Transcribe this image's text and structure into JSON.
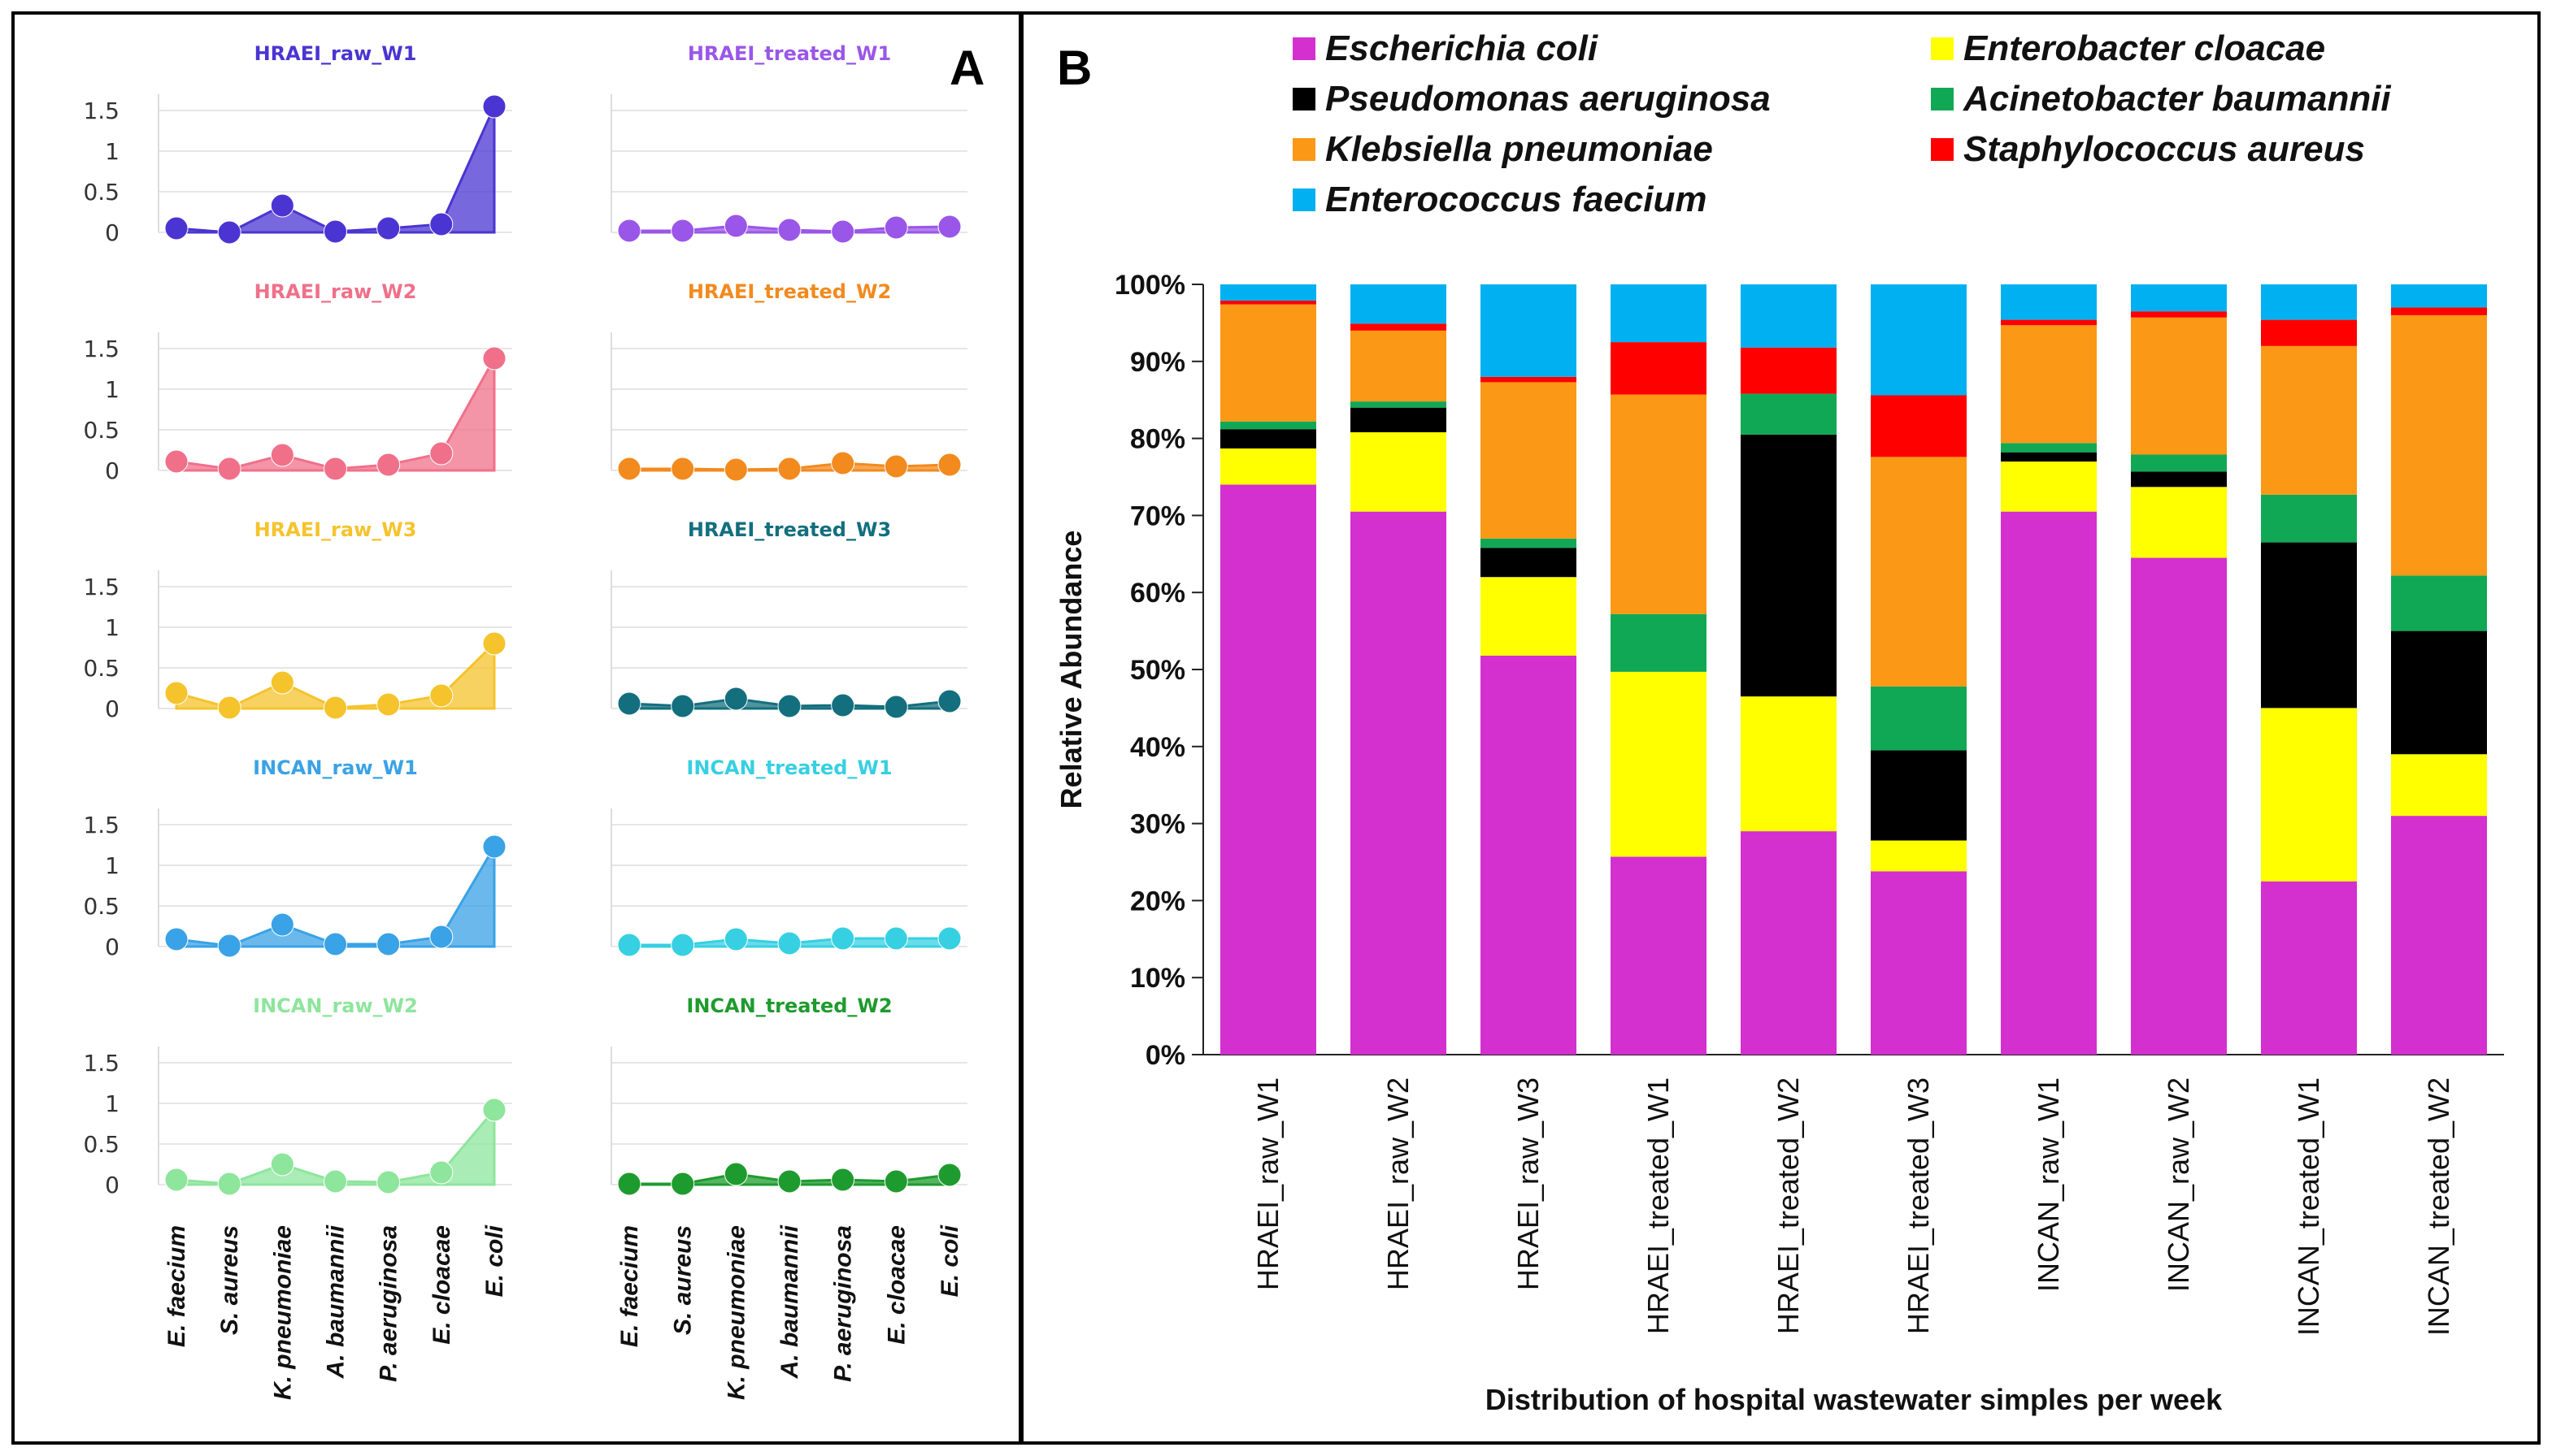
{
  "panel_a": {
    "letter": "A"
  },
  "panel_b": {
    "letter": "B"
  },
  "chart_data": [
    {
      "type": "area",
      "panel": "A",
      "categories": [
        "E. faecium",
        "S. aureus",
        "K. pneumoniae",
        "A. baumannii",
        "P. aeruginosa",
        "E. cloacae",
        "E. coli"
      ],
      "yticks": [
        "0",
        "0.5",
        "1",
        "1.5"
      ],
      "ylim": [
        0,
        1.6
      ],
      "subplots": [
        {
          "title": "HRAEI_raw_W1",
          "color": "#4a35d2",
          "values": [
            0.05,
            0.0,
            0.33,
            0.01,
            0.05,
            0.1,
            1.55
          ]
        },
        {
          "title": "HRAEI_treated_W1",
          "color": "#9a56e8",
          "values": [
            0.02,
            0.02,
            0.08,
            0.03,
            0.01,
            0.06,
            0.07
          ]
        },
        {
          "title": "HRAEI_raw_W2",
          "color": "#f0708a",
          "values": [
            0.11,
            0.02,
            0.19,
            0.02,
            0.07,
            0.21,
            1.38
          ]
        },
        {
          "title": "HRAEI_treated_W2",
          "color": "#f28a1e",
          "values": [
            0.02,
            0.02,
            0.01,
            0.02,
            0.09,
            0.05,
            0.07
          ]
        },
        {
          "title": "HRAEI_raw_W3",
          "color": "#f5c32c",
          "values": [
            0.19,
            0.01,
            0.32,
            0.01,
            0.05,
            0.16,
            0.8
          ]
        },
        {
          "title": "HRAEI_treated_W3",
          "color": "#136f7e",
          "values": [
            0.06,
            0.03,
            0.12,
            0.03,
            0.04,
            0.02,
            0.09
          ]
        },
        {
          "title": "INCAN_raw_W1",
          "color": "#3aa2e6",
          "values": [
            0.09,
            0.01,
            0.27,
            0.03,
            0.03,
            0.12,
            1.23
          ]
        },
        {
          "title": "INCAN_treated_W1",
          "color": "#36d0e2",
          "values": [
            0.02,
            0.02,
            0.09,
            0.04,
            0.1,
            0.1,
            0.1
          ]
        },
        {
          "title": "INCAN_raw_W2",
          "color": "#8ee59c",
          "values": [
            0.06,
            0.01,
            0.25,
            0.04,
            0.03,
            0.15,
            0.92
          ]
        },
        {
          "title": "INCAN_treated_W2",
          "color": "#1e9b2e",
          "values": [
            0.01,
            0.01,
            0.13,
            0.04,
            0.06,
            0.04,
            0.12
          ]
        }
      ]
    },
    {
      "type": "bar",
      "stacked": true,
      "panel": "B",
      "xlabel": "Distribution of hospital wastewater simples per week",
      "ylabel": "Relative Abundance",
      "yticks": [
        "0%",
        "10%",
        "20%",
        "30%",
        "40%",
        "50%",
        "60%",
        "70%",
        "80%",
        "90%",
        "100%"
      ],
      "ylim": [
        0,
        100
      ],
      "categories": [
        "HRAEI_raw_W1",
        "HRAEI_raw_W2",
        "HRAEI_raw_W3",
        "HRAEI_treated_W1",
        "HRAEI_treated_W2",
        "HRAEI_treated_W3",
        "INCAN_raw_W1",
        "INCAN_raw_W2",
        "INCAN_treated_W1",
        "INCAN_treated_W2"
      ],
      "series": [
        {
          "name": "Escherichia coli",
          "color": "#d42fcf",
          "values": [
            74,
            70.5,
            51.8,
            25.7,
            29,
            23.8,
            70.5,
            64.5,
            22.5,
            31
          ]
        },
        {
          "name": "Enterobacter cloacae",
          "color": "#ffff00",
          "values": [
            4.7,
            10.3,
            10.2,
            24,
            17.5,
            4,
            6.5,
            9.2,
            22.5,
            8
          ]
        },
        {
          "name": "Pseudomonas aeruginosa",
          "color": "#000000",
          "values": [
            2.5,
            3.2,
            3.8,
            0,
            34,
            11.7,
            1.2,
            2,
            21.5,
            16
          ]
        },
        {
          "name": "Acinetobacter baumannii",
          "color": "#11a855",
          "values": [
            1,
            0.8,
            1.2,
            7.5,
            5.3,
            8.3,
            1.2,
            2.2,
            6.2,
            7.2
          ]
        },
        {
          "name": "Klebsiella pneumoniae",
          "color": "#fb9815",
          "values": [
            15.2,
            9.2,
            20.3,
            28.5,
            0,
            29.8,
            15.3,
            17.8,
            19.3,
            33.8
          ]
        },
        {
          "name": "Staphylococcus aureus",
          "color": "#ff0000",
          "values": [
            0.5,
            0.9,
            0.7,
            6.8,
            6,
            8,
            0.7,
            0.8,
            3.4,
            1
          ]
        },
        {
          "name": "Enterococcus faecium",
          "color": "#00b0f0",
          "values": [
            2.1,
            5.1,
            12,
            7.5,
            8.2,
            14.4,
            4.6,
            3.5,
            4.6,
            3
          ]
        }
      ],
      "legend_order": [
        "Escherichia coli",
        "Enterobacter cloacae",
        "Pseudomonas aeruginosa",
        "Acinetobacter baumannii",
        "Klebsiella pneumoniae",
        "Staphylococcus aureus",
        "Enterococcus faecium"
      ]
    }
  ]
}
